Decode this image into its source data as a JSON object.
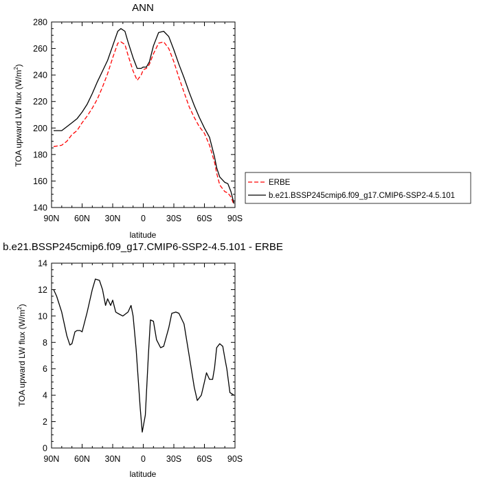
{
  "chart_data": [
    {
      "type": "line",
      "title": "ANN",
      "xlabel": "latitude",
      "ylabel": "TOA upward LW flux (W/m",
      "ylabel_sup": "2",
      "ylabel_end": ")",
      "xlim": [
        90,
        -90
      ],
      "ylim": [
        140,
        280
      ],
      "x_ticks": [
        90,
        60,
        30,
        0,
        -30,
        -60,
        -90
      ],
      "x_tick_labels": [
        "90N",
        "60N",
        "30N",
        "0",
        "30S",
        "60S",
        "90S"
      ],
      "y_ticks": [
        140,
        160,
        180,
        200,
        220,
        240,
        260,
        280
      ],
      "y_tick_labels": [
        "140",
        "160",
        "180",
        "200",
        "220",
        "240",
        "260",
        "280"
      ],
      "legend_position": "right",
      "series": [
        {
          "name": "ERBE",
          "color": "#ff0000",
          "dash": "dashed",
          "x": [
            88,
            80,
            75,
            70,
            65,
            60,
            55,
            50,
            45,
            40,
            35,
            30,
            25,
            22,
            18,
            15,
            10,
            6,
            2,
            0,
            -3,
            -6,
            -10,
            -15,
            -20,
            -25,
            -30,
            -35,
            -40,
            -45,
            -50,
            -55,
            -60,
            -65,
            -70,
            -72,
            -75,
            -80,
            -83,
            -86,
            -89
          ],
          "y": [
            186,
            187,
            190,
            195,
            198,
            204,
            209,
            215,
            222,
            231,
            241,
            253,
            264,
            265,
            263,
            255,
            243,
            236,
            240,
            244,
            245,
            248,
            256,
            264,
            265,
            260,
            250,
            238,
            227,
            216,
            208,
            201,
            196,
            187,
            174,
            166,
            157,
            152,
            151,
            148,
            142
          ]
        },
        {
          "name": "b.e21.BSSP245cmip6.f09_g17.CMIP6-SSP2-4.5.101",
          "color": "#000000",
          "dash": "solid",
          "x": [
            88,
            80,
            75,
            70,
            65,
            60,
            55,
            50,
            45,
            40,
            35,
            30,
            25,
            22,
            18,
            15,
            10,
            6,
            2,
            0,
            -3,
            -6,
            -10,
            -15,
            -20,
            -25,
            -30,
            -35,
            -40,
            -45,
            -50,
            -55,
            -60,
            -65,
            -70,
            -72,
            -75,
            -80,
            -83,
            -86,
            -89
          ],
          "y": [
            198,
            198,
            201,
            204,
            207,
            212,
            218,
            226,
            235,
            243,
            251,
            262,
            273,
            275,
            273,
            265,
            253,
            245,
            245,
            246,
            246,
            250,
            262,
            272,
            273,
            269,
            259,
            248,
            238,
            227,
            217,
            208,
            200,
            193,
            178,
            170,
            163,
            159,
            158,
            152,
            143
          ]
        }
      ]
    },
    {
      "type": "line",
      "title": "b.e21.BSSP245cmip6.f09_g17.CMIP6-SSP2-4.5.101 - ERBE",
      "xlabel": "latitude",
      "ylabel": "TOA upward LW flux (W/m",
      "ylabel_sup": "2",
      "ylabel_end": ")",
      "xlim": [
        90,
        -90
      ],
      "ylim": [
        0,
        14
      ],
      "x_ticks": [
        90,
        60,
        30,
        0,
        -30,
        -60,
        -90
      ],
      "x_tick_labels": [
        "90N",
        "60N",
        "30N",
        "0",
        "30S",
        "60S",
        "90S"
      ],
      "y_ticks": [
        0,
        2,
        4,
        6,
        8,
        10,
        12,
        14
      ],
      "y_tick_labels": [
        "0",
        "2",
        "4",
        "6",
        "8",
        "10",
        "12",
        "14"
      ],
      "series": [
        {
          "color": "#000000",
          "dash": "solid",
          "x": [
            88,
            85,
            80,
            75,
            72,
            70,
            67,
            65,
            62,
            60,
            55,
            50,
            47,
            43,
            40,
            37,
            35,
            32,
            30,
            27,
            25,
            20,
            15,
            12,
            10,
            7,
            3,
            1,
            -2,
            -5,
            -7,
            -10,
            -13,
            -17,
            -20,
            -25,
            -28,
            -32,
            -35,
            -40,
            -45,
            -50,
            -53,
            -57,
            -60,
            -62,
            -65,
            -68,
            -70,
            -72,
            -75,
            -78,
            -80,
            -82,
            -85,
            -89
          ],
          "y": [
            12.0,
            11.5,
            10.3,
            8.5,
            7.8,
            7.9,
            8.8,
            8.9,
            8.9,
            8.8,
            10.3,
            12.0,
            12.8,
            12.7,
            12.0,
            10.8,
            11.3,
            10.8,
            11.2,
            10.3,
            10.2,
            10.0,
            10.3,
            10.8,
            10.0,
            7.5,
            3.0,
            1.2,
            2.5,
            7.0,
            9.7,
            9.6,
            8.2,
            7.6,
            7.7,
            9.1,
            10.2,
            10.3,
            10.2,
            9.4,
            7.0,
            4.6,
            3.6,
            4.0,
            5.0,
            5.7,
            5.2,
            5.2,
            6.1,
            7.6,
            7.9,
            7.7,
            6.8,
            6.0,
            4.2,
            4.0
          ]
        }
      ]
    }
  ]
}
